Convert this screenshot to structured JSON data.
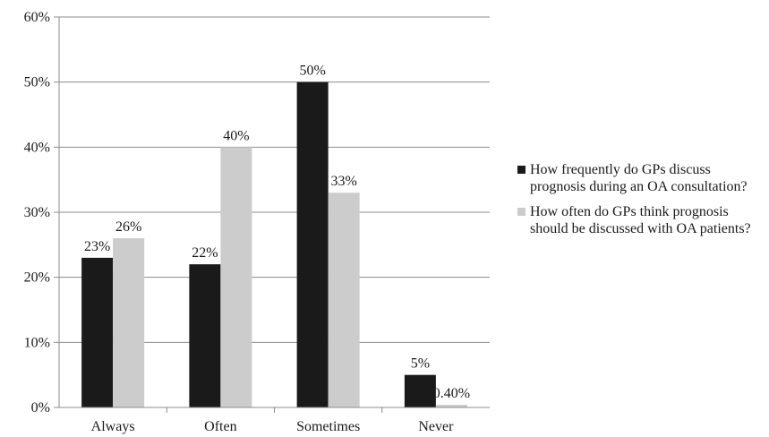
{
  "chart_data": {
    "type": "bar",
    "categories": [
      "Always",
      "Often",
      "Sometimes",
      "Never"
    ],
    "series": [
      {
        "name": "How frequently do GPs discuss prognosis during an OA consultation?",
        "values": [
          23,
          22,
          50,
          5
        ],
        "labels": [
          "23%",
          "22%",
          "50%",
          "5%"
        ],
        "color": "#1a1a1a"
      },
      {
        "name": "How often do GPs think prognosis should be discussed with OA patients?",
        "values": [
          26,
          40,
          33,
          0.4
        ],
        "labels": [
          "26%",
          "40%",
          "33%",
          "0.40%"
        ],
        "color": "#cccccc"
      }
    ],
    "yticks": [
      "0%",
      "10%",
      "20%",
      "30%",
      "40%",
      "50%",
      "60%"
    ],
    "ylim": [
      0,
      60
    ],
    "grid": true,
    "legend_position": "right"
  }
}
